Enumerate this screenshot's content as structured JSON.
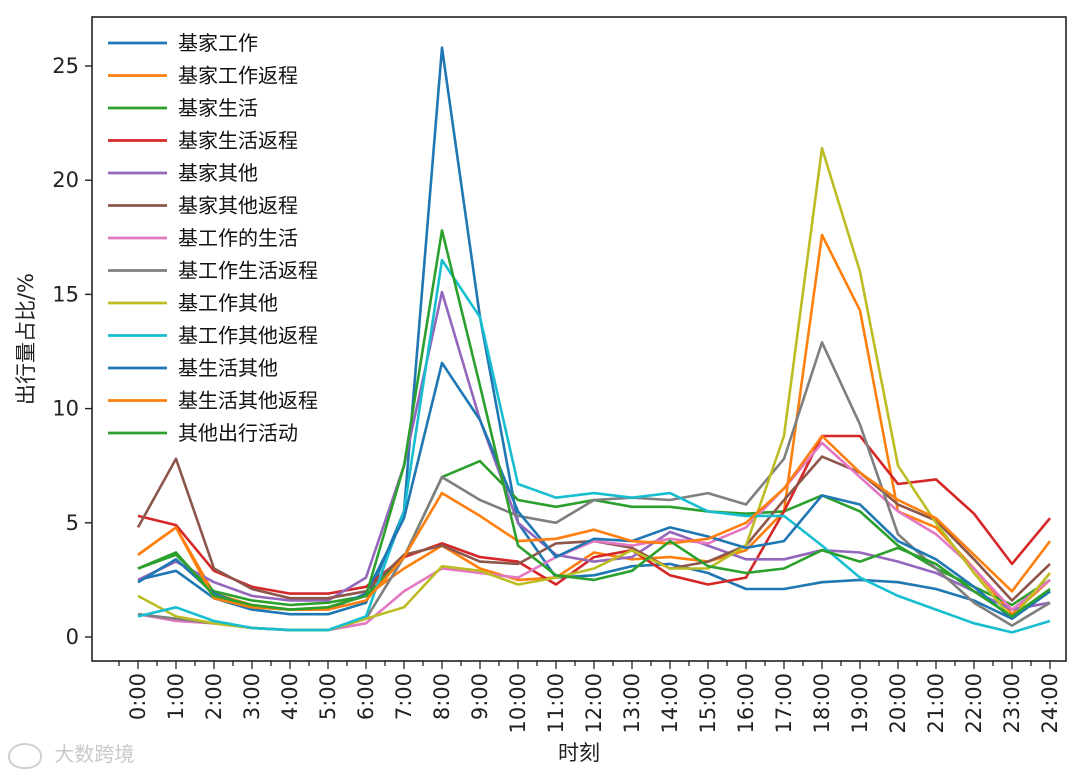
{
  "chart_data": {
    "type": "line",
    "title": "",
    "xlabel": "时刻",
    "ylabel": "出行量占比/%",
    "x": [
      "0:00",
      "1:00",
      "2:00",
      "3:00",
      "4:00",
      "5:00",
      "6:00",
      "7:00",
      "8:00",
      "9:00",
      "10:00",
      "11:00",
      "12:00",
      "13:00",
      "14:00",
      "15:00",
      "16:00",
      "17:00",
      "18:00",
      "19:00",
      "20:00",
      "21:00",
      "22:00",
      "23:00",
      "24:00"
    ],
    "ylim": [
      -1,
      27
    ],
    "yticks": [
      0,
      5,
      10,
      15,
      20,
      25
    ],
    "grid": false,
    "legend_position": "top-left",
    "series": [
      {
        "name": "基家工作",
        "color": "#1f77b4",
        "values": [
          2.5,
          2.9,
          1.7,
          1.2,
          1.0,
          1.0,
          1.5,
          5.5,
          25.8,
          14.0,
          5.0,
          2.6,
          2.7,
          3.1,
          3.2,
          2.8,
          2.1,
          2.1,
          2.4,
          2.5,
          2.4,
          2.1,
          1.6,
          0.8,
          2.0
        ]
      },
      {
        "name": "基家工作返程",
        "color": "#ff7f0e",
        "values": [
          3.6,
          4.8,
          1.9,
          1.4,
          1.2,
          1.3,
          1.8,
          3.0,
          4.0,
          3.0,
          2.5,
          2.6,
          3.7,
          3.4,
          3.5,
          3.3,
          3.8,
          5.5,
          17.6,
          14.3,
          5.5,
          4.8,
          3.0,
          1.0,
          2.5
        ]
      },
      {
        "name": "基家生活",
        "color": "#2ca02c",
        "values": [
          3.0,
          3.6,
          2.0,
          1.6,
          1.4,
          1.5,
          1.8,
          3.5,
          7.0,
          7.7,
          6.0,
          5.7,
          6.0,
          5.7,
          5.7,
          5.5,
          5.4,
          5.5,
          6.2,
          5.5,
          4.0,
          3.0,
          2.2,
          1.4,
          2.5
        ]
      },
      {
        "name": "基家生活返程",
        "color": "#d62728",
        "values": [
          5.3,
          4.9,
          2.9,
          2.2,
          1.9,
          1.9,
          2.2,
          3.5,
          4.1,
          3.5,
          3.3,
          2.3,
          3.5,
          3.8,
          2.7,
          2.3,
          2.6,
          5.5,
          8.8,
          8.8,
          6.7,
          6.9,
          5.4,
          3.2,
          5.2
        ]
      },
      {
        "name": "基家其他",
        "color": "#9467bd",
        "values": [
          2.5,
          3.3,
          2.4,
          1.8,
          1.6,
          1.6,
          2.6,
          7.5,
          15.1,
          9.5,
          5.0,
          3.6,
          3.3,
          3.5,
          4.6,
          4.0,
          3.4,
          3.4,
          3.8,
          3.7,
          3.3,
          2.8,
          2.0,
          1.2,
          1.5
        ]
      },
      {
        "name": "基家其他返程",
        "color": "#8c564b",
        "values": [
          4.8,
          7.8,
          3.0,
          2.1,
          1.7,
          1.7,
          2.0,
          3.6,
          4.0,
          3.3,
          3.2,
          4.1,
          4.2,
          3.9,
          3.0,
          3.3,
          4.0,
          6.0,
          7.9,
          7.2,
          5.8,
          5.1,
          3.4,
          1.6,
          3.2
        ]
      },
      {
        "name": "基工作的生活",
        "color": "#e377c2",
        "values": [
          1.0,
          0.7,
          0.6,
          0.4,
          0.3,
          0.3,
          0.6,
          2.0,
          3.0,
          2.8,
          2.6,
          3.5,
          4.2,
          4.0,
          4.3,
          4.1,
          4.8,
          6.5,
          8.5,
          7.0,
          5.5,
          4.5,
          3.0,
          1.2,
          2.5
        ]
      },
      {
        "name": "基工作生活返程",
        "color": "#7f7f7f",
        "values": [
          1.0,
          0.8,
          0.6,
          0.4,
          0.3,
          0.3,
          0.8,
          3.5,
          7.0,
          6.0,
          5.3,
          5.0,
          6.0,
          6.1,
          6.0,
          6.3,
          5.8,
          7.8,
          12.9,
          9.3,
          4.5,
          3.0,
          1.5,
          0.5,
          1.5
        ]
      },
      {
        "name": "基工作其他",
        "color": "#bcbd22",
        "values": [
          1.8,
          0.9,
          0.6,
          0.4,
          0.3,
          0.3,
          0.8,
          1.3,
          3.1,
          2.9,
          2.3,
          2.6,
          3.0,
          3.8,
          3.0,
          3.0,
          4.0,
          8.8,
          21.4,
          16.0,
          7.5,
          5.0,
          2.8,
          0.8,
          2.8
        ]
      },
      {
        "name": "基工作其他返程",
        "color": "#17becf",
        "values": [
          0.9,
          1.3,
          0.7,
          0.4,
          0.3,
          0.3,
          0.9,
          5.5,
          16.5,
          14.0,
          6.7,
          6.1,
          6.3,
          6.1,
          6.3,
          5.5,
          5.3,
          5.3,
          4.0,
          2.6,
          1.8,
          1.2,
          0.6,
          0.2,
          0.7
        ]
      },
      {
        "name": "基生活其他",
        "color": "#1f77b4",
        "values": [
          2.4,
          3.4,
          1.9,
          1.3,
          1.2,
          1.2,
          1.9,
          5.2,
          12.0,
          9.5,
          5.5,
          3.5,
          4.3,
          4.2,
          4.8,
          4.4,
          3.9,
          4.2,
          6.2,
          5.8,
          4.2,
          3.4,
          2.2,
          0.8,
          2.0
        ]
      },
      {
        "name": "基生活其他返程",
        "color": "#ff7f0e",
        "values": [
          3.6,
          4.8,
          1.7,
          1.3,
          1.2,
          1.2,
          1.6,
          3.5,
          6.3,
          5.3,
          4.2,
          4.3,
          4.7,
          4.2,
          4.1,
          4.3,
          5.0,
          6.5,
          8.8,
          7.2,
          6.0,
          5.2,
          3.6,
          2.0,
          4.2
        ]
      },
      {
        "name": "其他出行活动",
        "color": "#2ca02c",
        "values": [
          3.0,
          3.7,
          1.8,
          1.4,
          1.2,
          1.3,
          1.8,
          7.5,
          17.8,
          11.0,
          4.0,
          2.7,
          2.5,
          2.9,
          4.2,
          3.1,
          2.8,
          3.0,
          3.8,
          3.3,
          3.9,
          3.2,
          2.0,
          0.9,
          2.1
        ]
      }
    ]
  },
  "watermark": "大数跨境"
}
